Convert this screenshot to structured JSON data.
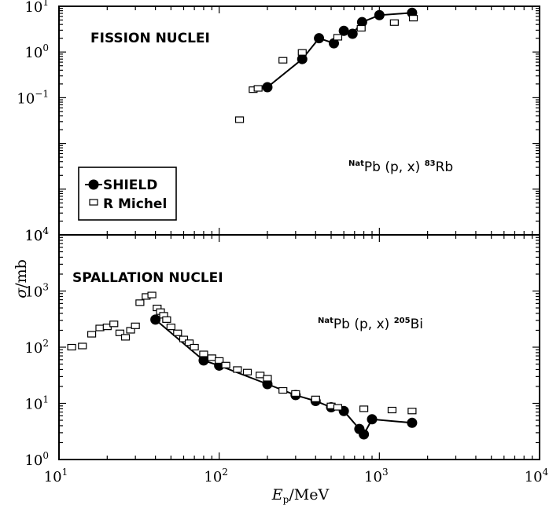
{
  "figure": {
    "ylabel_sigma": "σ",
    "ylabel_unit": "/mb",
    "xlabel_E": "E",
    "xlabel_sub": "p",
    "xlabel_unit": "/MeV"
  },
  "legend": {
    "shield_label": "SHIELD",
    "michel_label": "R Michel"
  },
  "chart_data": [
    {
      "type": "scatter",
      "title": "FISSION NUCLEI",
      "annotation": {
        "sup_left": "Nat",
        "text": "Pb (p, x) ",
        "sup_right": "83",
        "element": "Rb"
      },
      "x_scale": "log",
      "y_scale": "log",
      "xlim": [
        10,
        10000
      ],
      "ylim": [
        0.0001,
        10
      ],
      "y_ticks": [
        {
          "value": 0.1,
          "base": "10",
          "exp": "−1"
        },
        {
          "value": 1,
          "base": "10",
          "exp": "0"
        },
        {
          "value": 10,
          "base": "10",
          "exp": "1"
        }
      ],
      "series": [
        {
          "name": "SHIELD",
          "marker": "filled-circle",
          "connected": true,
          "x": [
            200,
            330,
            420,
            520,
            600,
            680,
            780,
            1000,
            1600
          ],
          "y": [
            0.17,
            0.7,
            2.0,
            1.55,
            2.9,
            2.5,
            4.5,
            6.4,
            7.2
          ]
        },
        {
          "name": "R Michel",
          "marker": "open-rectangle",
          "connected": false,
          "x": [
            134,
            163,
            175,
            250,
            330,
            550,
            770,
            1240,
            1630
          ],
          "y": [
            0.033,
            0.15,
            0.16,
            0.66,
            0.98,
            2.1,
            3.3,
            4.4,
            5.5
          ]
        }
      ]
    },
    {
      "type": "scatter",
      "title": "SPALLATION NUCLEI",
      "annotation": {
        "sup_left": "Nat",
        "text": "Pb (p, x) ",
        "sup_right": "205",
        "element": "Bi"
      },
      "x_scale": "log",
      "y_scale": "log",
      "xlim": [
        10,
        10000
      ],
      "ylim": [
        1,
        10000
      ],
      "y_ticks": [
        {
          "value": 1,
          "base": "10",
          "exp": "0"
        },
        {
          "value": 10,
          "base": "10",
          "exp": "1"
        },
        {
          "value": 100,
          "base": "10",
          "exp": "2"
        },
        {
          "value": 1000,
          "base": "10",
          "exp": "3"
        },
        {
          "value": 10000,
          "base": "10",
          "exp": "4"
        }
      ],
      "x_ticks": [
        {
          "value": 10,
          "base": "10",
          "exp": "1"
        },
        {
          "value": 100,
          "base": "10",
          "exp": "2"
        },
        {
          "value": 1000,
          "base": "10",
          "exp": "3"
        },
        {
          "value": 10000,
          "base": "10",
          "exp": "4"
        }
      ],
      "series": [
        {
          "name": "SHIELD",
          "marker": "filled-circle",
          "connected": true,
          "x": [
            40,
            80,
            100,
            200,
            300,
            400,
            500,
            600,
            750,
            800,
            900,
            1600
          ],
          "y": [
            310,
            58,
            47,
            22,
            14,
            11,
            8.5,
            7.3,
            3.5,
            2.8,
            5.2,
            4.5
          ]
        },
        {
          "name": "R Michel",
          "marker": "open-rectangle",
          "connected": false,
          "x": [
            12,
            14,
            16,
            18,
            20,
            22,
            24,
            26,
            28,
            30,
            32,
            35,
            38,
            41,
            43,
            45,
            47,
            50,
            55,
            60,
            65,
            70,
            80,
            90,
            100,
            110,
            130,
            150,
            180,
            200,
            250,
            300,
            400,
            500,
            550,
            800,
            1200,
            1600
          ],
          "y": [
            100,
            105,
            170,
            220,
            230,
            260,
            180,
            150,
            200,
            240,
            620,
            800,
            850,
            500,
            430,
            370,
            310,
            230,
            180,
            140,
            120,
            100,
            76,
            65,
            58,
            48,
            40,
            36,
            32,
            28,
            17,
            15,
            12,
            9,
            8.5,
            8,
            7.6,
            7.3
          ]
        }
      ]
    }
  ]
}
